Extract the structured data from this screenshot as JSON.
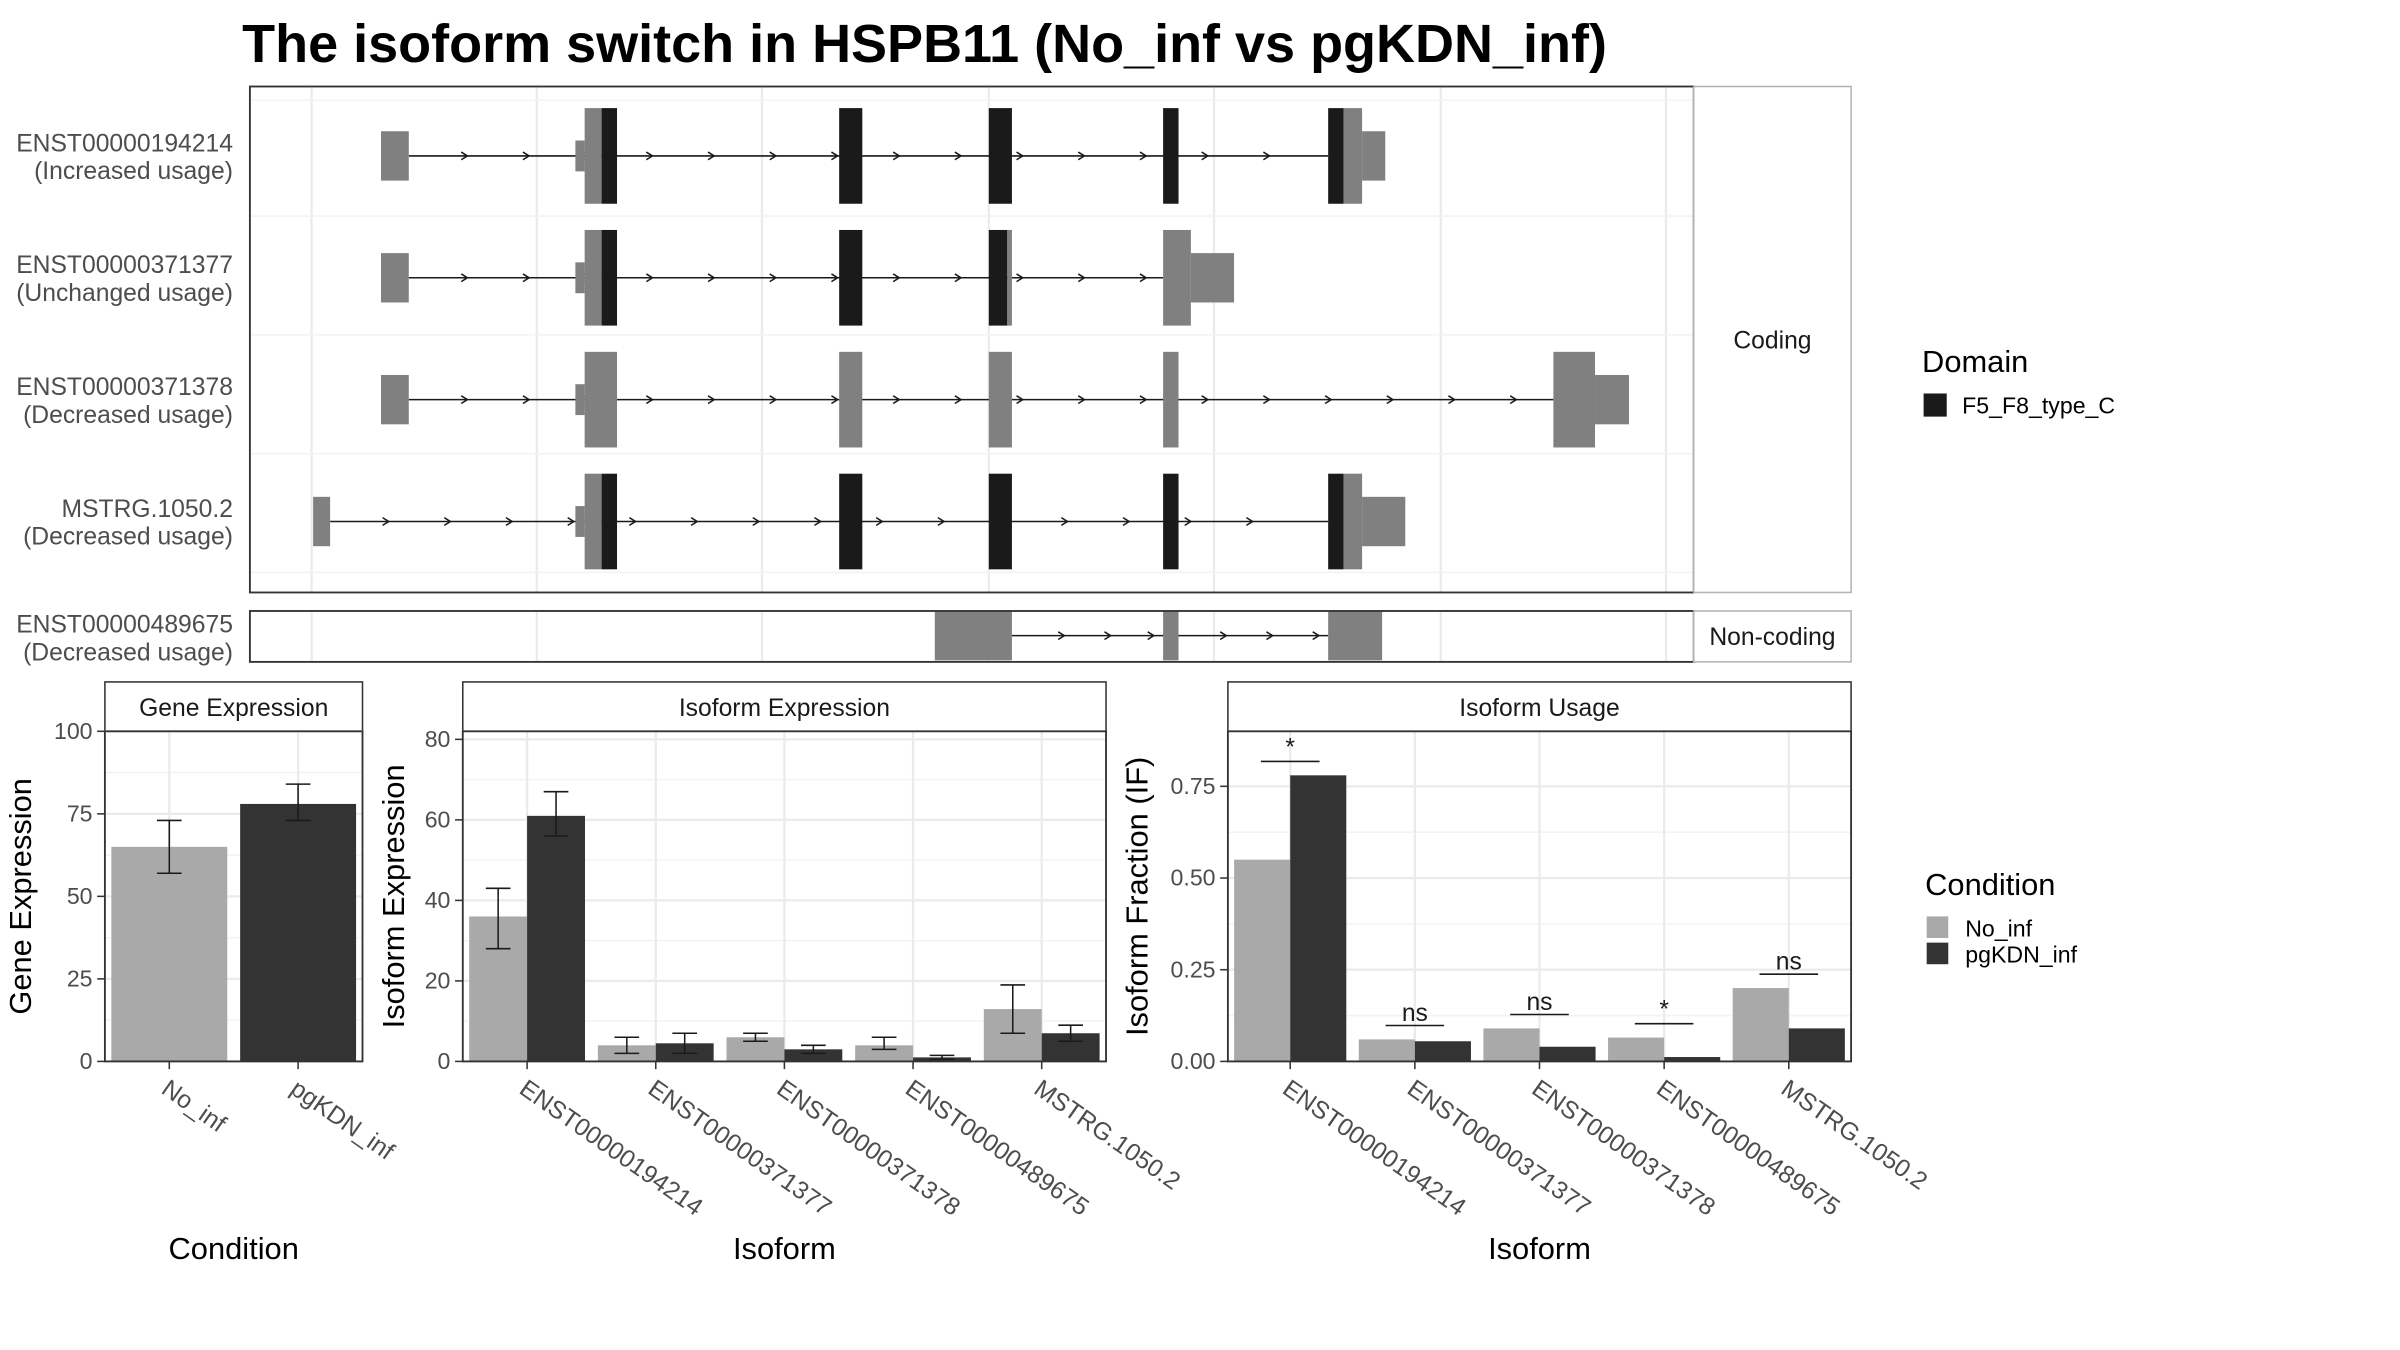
{
  "title": "The isoform switch in HSPB11 (No_inf vs pgKDN_inf)",
  "legend_domain": {
    "title": "Domain",
    "items": [
      {
        "label": "F5_F8_type_C",
        "color": "#1a1a1a"
      }
    ]
  },
  "legend_condition": {
    "title": "Condition",
    "items": [
      {
        "label": "No_inf",
        "color": "#a9a9a9"
      },
      {
        "label": "pgKDN_inf",
        "color": "#333333"
      }
    ]
  },
  "colors": {
    "exon": "#808080",
    "domain": "#1a1a1a",
    "no_inf": "#a9a9a9",
    "pgkdn_inf": "#333333",
    "grid": "#ebebeb",
    "strip": "#ffffff",
    "panel_border": "#333333",
    "strip_border": "#b3b3b3"
  },
  "transcripts": {
    "strip_coding": "Coding",
    "strip_noncoding": "Non-coding",
    "coding": [
      {
        "id": "ENST00000194214",
        "usage": "(Increased usage)"
      },
      {
        "id": "ENST00000371377",
        "usage": "(Unchanged usage)"
      },
      {
        "id": "ENST00000371378",
        "usage": "(Decreased usage)"
      },
      {
        "id": "MSTRG.1050.2",
        "usage": "(Decreased usage)"
      }
    ],
    "noncoding": [
      {
        "id": "ENST00000489675",
        "usage": "(Decreased usage)"
      }
    ]
  },
  "chart_data": [
    {
      "type": "bar",
      "title": "Gene Expression",
      "xlabel": "Condition",
      "ylabel": "Gene Expression",
      "categories": [
        "No_inf",
        "pgKDN_inf"
      ],
      "values": [
        65,
        78
      ],
      "error_low": [
        57,
        73
      ],
      "error_high": [
        73,
        84
      ],
      "ylim": [
        0,
        100
      ],
      "yticks": [
        0,
        25,
        50,
        75,
        100
      ],
      "grid": true
    },
    {
      "type": "bar",
      "title": "Isoform Expression",
      "xlabel": "Isoform",
      "ylabel": "Isoform Expression",
      "categories": [
        "ENST00000194214",
        "ENST00000371377",
        "ENST00000371378",
        "ENST00000489675",
        "MSTRG.1050.2"
      ],
      "series": [
        {
          "name": "No_inf",
          "values": [
            36,
            4,
            6,
            4,
            13
          ],
          "error_low": [
            28,
            2,
            5,
            3,
            7
          ],
          "error_high": [
            43,
            6,
            7,
            6,
            19
          ]
        },
        {
          "name": "pgKDN_inf",
          "values": [
            61,
            4.5,
            3,
            1,
            7
          ],
          "error_low": [
            56,
            2,
            2,
            0.5,
            5
          ],
          "error_high": [
            67,
            7,
            4,
            1.5,
            9
          ]
        }
      ],
      "ylim": [
        0,
        82
      ],
      "yticks": [
        0,
        20,
        40,
        60,
        80
      ],
      "grid": true
    },
    {
      "type": "bar",
      "title": "Isoform Usage",
      "xlabel": "Isoform",
      "ylabel": "Isoform Fraction (IF)",
      "categories": [
        "ENST00000194214",
        "ENST00000371377",
        "ENST00000371378",
        "ENST00000489675",
        "MSTRG.1050.2"
      ],
      "series": [
        {
          "name": "No_inf",
          "values": [
            0.55,
            0.06,
            0.09,
            0.065,
            0.2
          ]
        },
        {
          "name": "pgKDN_inf",
          "values": [
            0.78,
            0.055,
            0.04,
            0.012,
            0.09
          ]
        }
      ],
      "significance": [
        "*",
        "ns",
        "ns",
        "*",
        "ns"
      ],
      "ylim": [
        0,
        0.9
      ],
      "yticks": [
        0,
        0.25,
        0.5,
        0.75
      ],
      "ytick_labels": [
        "0.00",
        "0.25",
        "0.50",
        "0.75"
      ],
      "grid": true
    }
  ]
}
